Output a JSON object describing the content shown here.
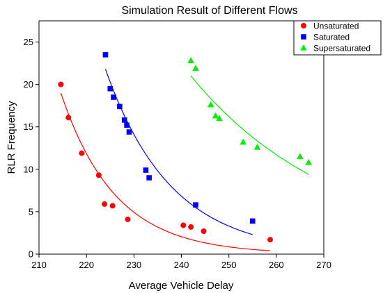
{
  "chart_data": {
    "type": "scatter",
    "title": "Simulation Result of Different Flows",
    "xlabel": "Average Vehicle Delay",
    "ylabel": "RLR Frequency",
    "xlim": [
      210,
      270
    ],
    "ylim": [
      0,
      27.5
    ],
    "xticks": [
      210,
      220,
      230,
      240,
      250,
      260,
      270
    ],
    "yticks": [
      0,
      5,
      10,
      15,
      20,
      25
    ],
    "legend_position": "top-right",
    "grid": false,
    "series": [
      {
        "name": "Unsaturated",
        "color": "#ff0000",
        "marker": "circle",
        "points": [
          [
            214.6,
            20.0
          ],
          [
            216.2,
            16.1
          ],
          [
            219.0,
            11.9
          ],
          [
            222.6,
            9.3
          ],
          [
            223.8,
            5.9
          ],
          [
            225.5,
            5.7
          ],
          [
            228.7,
            4.1
          ],
          [
            240.4,
            3.4
          ],
          [
            242.0,
            3.2
          ],
          [
            244.7,
            2.7
          ],
          [
            258.7,
            1.7
          ]
        ],
        "fit": {
          "x_start": 214.6,
          "x_end": 258.7,
          "y_at_start": 19.0,
          "y_at_end": 0.4
        }
      },
      {
        "name": "Saturated",
        "color": "#0000ff",
        "marker": "square",
        "points": [
          [
            224.0,
            23.5
          ],
          [
            225.0,
            19.5
          ],
          [
            225.7,
            18.5
          ],
          [
            227.0,
            17.4
          ],
          [
            228.0,
            15.8
          ],
          [
            228.5,
            15.2
          ],
          [
            229.0,
            14.4
          ],
          [
            232.5,
            9.9
          ],
          [
            233.2,
            9.0
          ],
          [
            243.0,
            5.8
          ],
          [
            255.0,
            3.9
          ]
        ],
        "fit": {
          "x_start": 224.0,
          "x_end": 255.0,
          "y_at_start": 21.8,
          "y_at_end": 2.3
        }
      },
      {
        "name": "Supersaturated",
        "color": "#00ee00",
        "marker": "triangle",
        "points": [
          [
            242.0,
            22.8
          ],
          [
            243.0,
            21.9
          ],
          [
            246.2,
            17.6
          ],
          [
            247.2,
            16.3
          ],
          [
            248.0,
            16.0
          ],
          [
            253.0,
            13.2
          ],
          [
            256.0,
            12.6
          ],
          [
            265.0,
            11.5
          ],
          [
            266.8,
            10.8
          ]
        ],
        "fit": {
          "x_start": 242.0,
          "x_end": 266.8,
          "y_at_start": 21.0,
          "y_at_end": 9.4
        }
      }
    ]
  }
}
